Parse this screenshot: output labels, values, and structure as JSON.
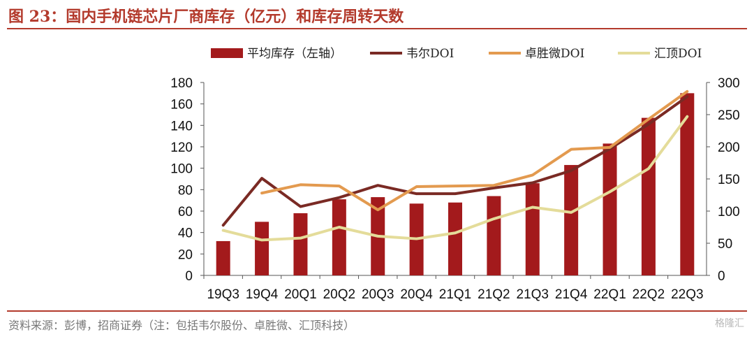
{
  "header": {
    "title": "图 23：国内手机链芯片厂商库存（亿元）和库存周转天数"
  },
  "footer": {
    "source": "资料来源：彭博，招商证券（注：包括韦尔股份、卓胜微、汇顶科技）",
    "watermark": "格隆汇"
  },
  "colors": {
    "bar": "#a31a1c",
    "will": "#7a2a24",
    "maxscend": "#e39a4f",
    "goodix": "#e4dc9a",
    "accent": "#b33a2c"
  },
  "chart_data": {
    "type": "bar",
    "title": "",
    "xlabel": "",
    "ylabel": "",
    "categories": [
      "19Q3",
      "19Q4",
      "20Q1",
      "20Q2",
      "20Q3",
      "20Q4",
      "21Q1",
      "21Q2",
      "21Q3",
      "21Q4",
      "22Q1",
      "22Q2",
      "22Q3"
    ],
    "ylim": [
      0,
      180
    ],
    "y2lim": [
      0,
      300
    ],
    "yticks": [
      "0",
      "20",
      "40",
      "60",
      "80",
      "100",
      "120",
      "140",
      "160",
      "180"
    ],
    "y2ticks": [
      "0",
      "50",
      "100",
      "150",
      "200",
      "250",
      "300"
    ],
    "legend_position": "top",
    "series": [
      {
        "name": "平均库存（左轴）",
        "type": "bar",
        "axis": "left",
        "values": [
          32,
          50,
          58,
          71,
          73,
          67,
          68,
          74,
          86,
          103,
          123,
          147,
          170
        ]
      },
      {
        "name": "韦尔DOI",
        "type": "line",
        "axis": "right",
        "values": [
          78,
          151,
          107,
          121,
          140,
          127,
          127,
          136,
          144,
          163,
          197,
          235,
          278
        ]
      },
      {
        "name": "卓胜微DOI",
        "type": "line",
        "axis": "right",
        "values": [
          null,
          128,
          141,
          139,
          102,
          138,
          139,
          140,
          156,
          196,
          199,
          243,
          286
        ]
      },
      {
        "name": "汇顶DOI",
        "type": "line",
        "axis": "right",
        "values": [
          70,
          55,
          58,
          75,
          61,
          57,
          66,
          88,
          106,
          98,
          130,
          166,
          247
        ]
      }
    ]
  }
}
